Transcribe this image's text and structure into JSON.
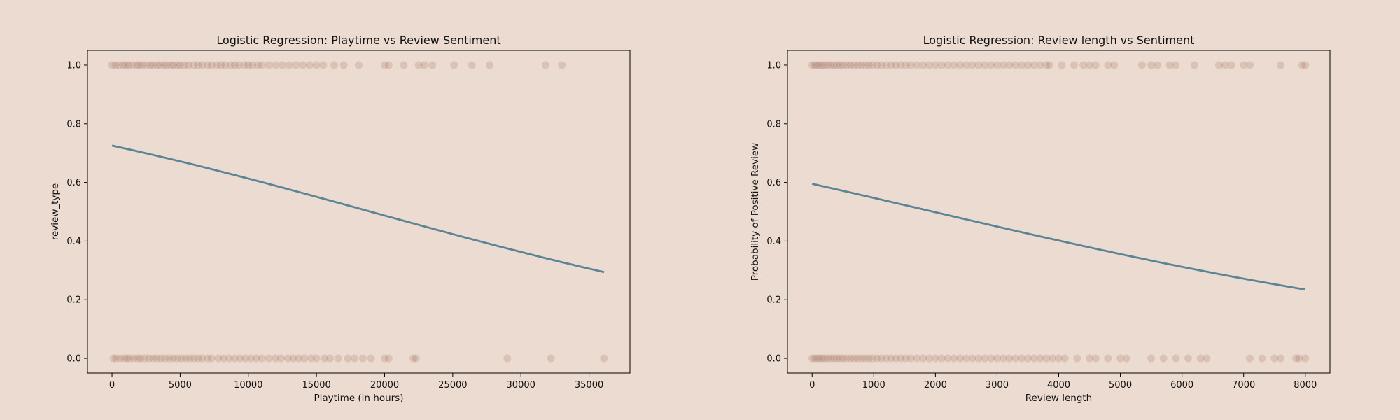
{
  "figure": {
    "background": "#ecdbd0"
  },
  "chart_data": [
    {
      "type": "scatter",
      "title": "Logistic Regression: Playtime vs Review Sentiment",
      "xlabel": "Playtime (in hours)",
      "ylabel": "review_type",
      "xlim": [
        -1800,
        38000
      ],
      "ylim": [
        -0.05,
        1.05
      ],
      "xticks": [
        0,
        5000,
        10000,
        15000,
        20000,
        25000,
        30000,
        35000
      ],
      "xtick_labels": [
        "0",
        "5000",
        "10000",
        "15000",
        "20000",
        "25000",
        "30000",
        "35000"
      ],
      "yticks": [
        0.0,
        0.2,
        0.4,
        0.6,
        0.8,
        1.0
      ],
      "ytick_labels": [
        "0.0",
        "0.2",
        "0.4",
        "0.6",
        "0.8",
        "1.0"
      ],
      "grid": false,
      "point_color": "#9a6a58",
      "line_color": "#5b8596",
      "series": [
        {
          "type": "scatter",
          "y": 1,
          "x": [
            0,
            250,
            500,
            800,
            1000,
            1200,
            1500,
            1800,
            2000,
            2200,
            2500,
            2800,
            3000,
            3300,
            3500,
            3800,
            4000,
            4300,
            4500,
            4800,
            5000,
            5300,
            5600,
            6000,
            6300,
            6600,
            7000,
            7300,
            7700,
            8000,
            8300,
            8700,
            9000,
            9300,
            9700,
            10000,
            10300,
            10700,
            11000,
            11500,
            12000,
            12500,
            13000,
            13500,
            14000,
            14500,
            15000,
            15500,
            16300,
            17000,
            18100,
            20000,
            20300,
            21400,
            22500,
            22900,
            23500,
            25100,
            26400,
            27700,
            31800,
            33000
          ]
        },
        {
          "type": "scatter",
          "y": 0,
          "x": [
            100,
            300,
            600,
            900,
            1100,
            1300,
            1600,
            1900,
            2100,
            2400,
            2700,
            3000,
            3300,
            3600,
            3900,
            4200,
            4500,
            4800,
            5100,
            5400,
            5700,
            6000,
            6300,
            6600,
            7000,
            7300,
            7800,
            8200,
            8600,
            9000,
            9400,
            9800,
            10200,
            10600,
            11000,
            11500,
            12000,
            12400,
            12900,
            13300,
            13700,
            14100,
            14600,
            15000,
            15600,
            16000,
            16600,
            17300,
            17800,
            18400,
            19000,
            20000,
            20300,
            22100,
            22300,
            29000,
            32200,
            36100
          ]
        },
        {
          "type": "line",
          "name": "",
          "x": [
            0,
            36100
          ],
          "intercept": 0.973,
          "slope": -5.12e-05
        }
      ]
    },
    {
      "type": "scatter",
      "title": "Logistic Regression: Review length vs Sentiment",
      "xlabel": "Review length",
      "ylabel": "Probability of Positive Review",
      "xlim": [
        -400,
        8400
      ],
      "ylim": [
        -0.05,
        1.05
      ],
      "xticks": [
        0,
        1000,
        2000,
        3000,
        4000,
        5000,
        6000,
        7000,
        8000
      ],
      "xtick_labels": [
        "0",
        "1000",
        "2000",
        "3000",
        "4000",
        "5000",
        "6000",
        "7000",
        "8000"
      ],
      "yticks": [
        0.0,
        0.2,
        0.4,
        0.6,
        0.8,
        1.0
      ],
      "ytick_labels": [
        "0.0",
        "0.2",
        "0.4",
        "0.6",
        "0.8",
        "1.0"
      ],
      "grid": false,
      "point_color": "#9a6a58",
      "line_color": "#5b8596",
      "series": [
        {
          "type": "scatter",
          "y": 1,
          "x": [
            0,
            40,
            80,
            120,
            160,
            200,
            250,
            300,
            350,
            400,
            450,
            500,
            560,
            620,
            680,
            740,
            800,
            860,
            920,
            980,
            1050,
            1120,
            1200,
            1280,
            1360,
            1440,
            1520,
            1600,
            1700,
            1800,
            1900,
            2000,
            2100,
            2200,
            2300,
            2400,
            2500,
            2600,
            2700,
            2800,
            2900,
            3000,
            3100,
            3200,
            3300,
            3400,
            3500,
            3600,
            3700,
            3800,
            3850,
            4050,
            4250,
            4400,
            4500,
            4600,
            4800,
            4900,
            5350,
            5500,
            5600,
            5800,
            5900,
            6200,
            6600,
            6700,
            6800,
            7000,
            7100,
            7600,
            7950,
            8000
          ]
        },
        {
          "type": "scatter",
          "y": 0,
          "x": [
            0,
            40,
            80,
            120,
            160,
            200,
            250,
            300,
            350,
            400,
            450,
            500,
            560,
            620,
            680,
            740,
            800,
            860,
            920,
            980,
            1050,
            1120,
            1200,
            1280,
            1360,
            1440,
            1520,
            1600,
            1700,
            1800,
            1900,
            2000,
            2100,
            2200,
            2300,
            2400,
            2500,
            2600,
            2700,
            2800,
            2900,
            3000,
            3100,
            3200,
            3300,
            3400,
            3500,
            3600,
            3700,
            3800,
            3900,
            4000,
            4100,
            4300,
            4500,
            4600,
            4800,
            5000,
            5100,
            5500,
            5700,
            5900,
            6100,
            6300,
            6400,
            7100,
            7300,
            7500,
            7600,
            7850,
            7900,
            8000
          ]
        },
        {
          "type": "line",
          "name": "",
          "x": [
            0,
            8000
          ],
          "intercept": 0.386,
          "slope": -0.000196
        }
      ]
    }
  ]
}
